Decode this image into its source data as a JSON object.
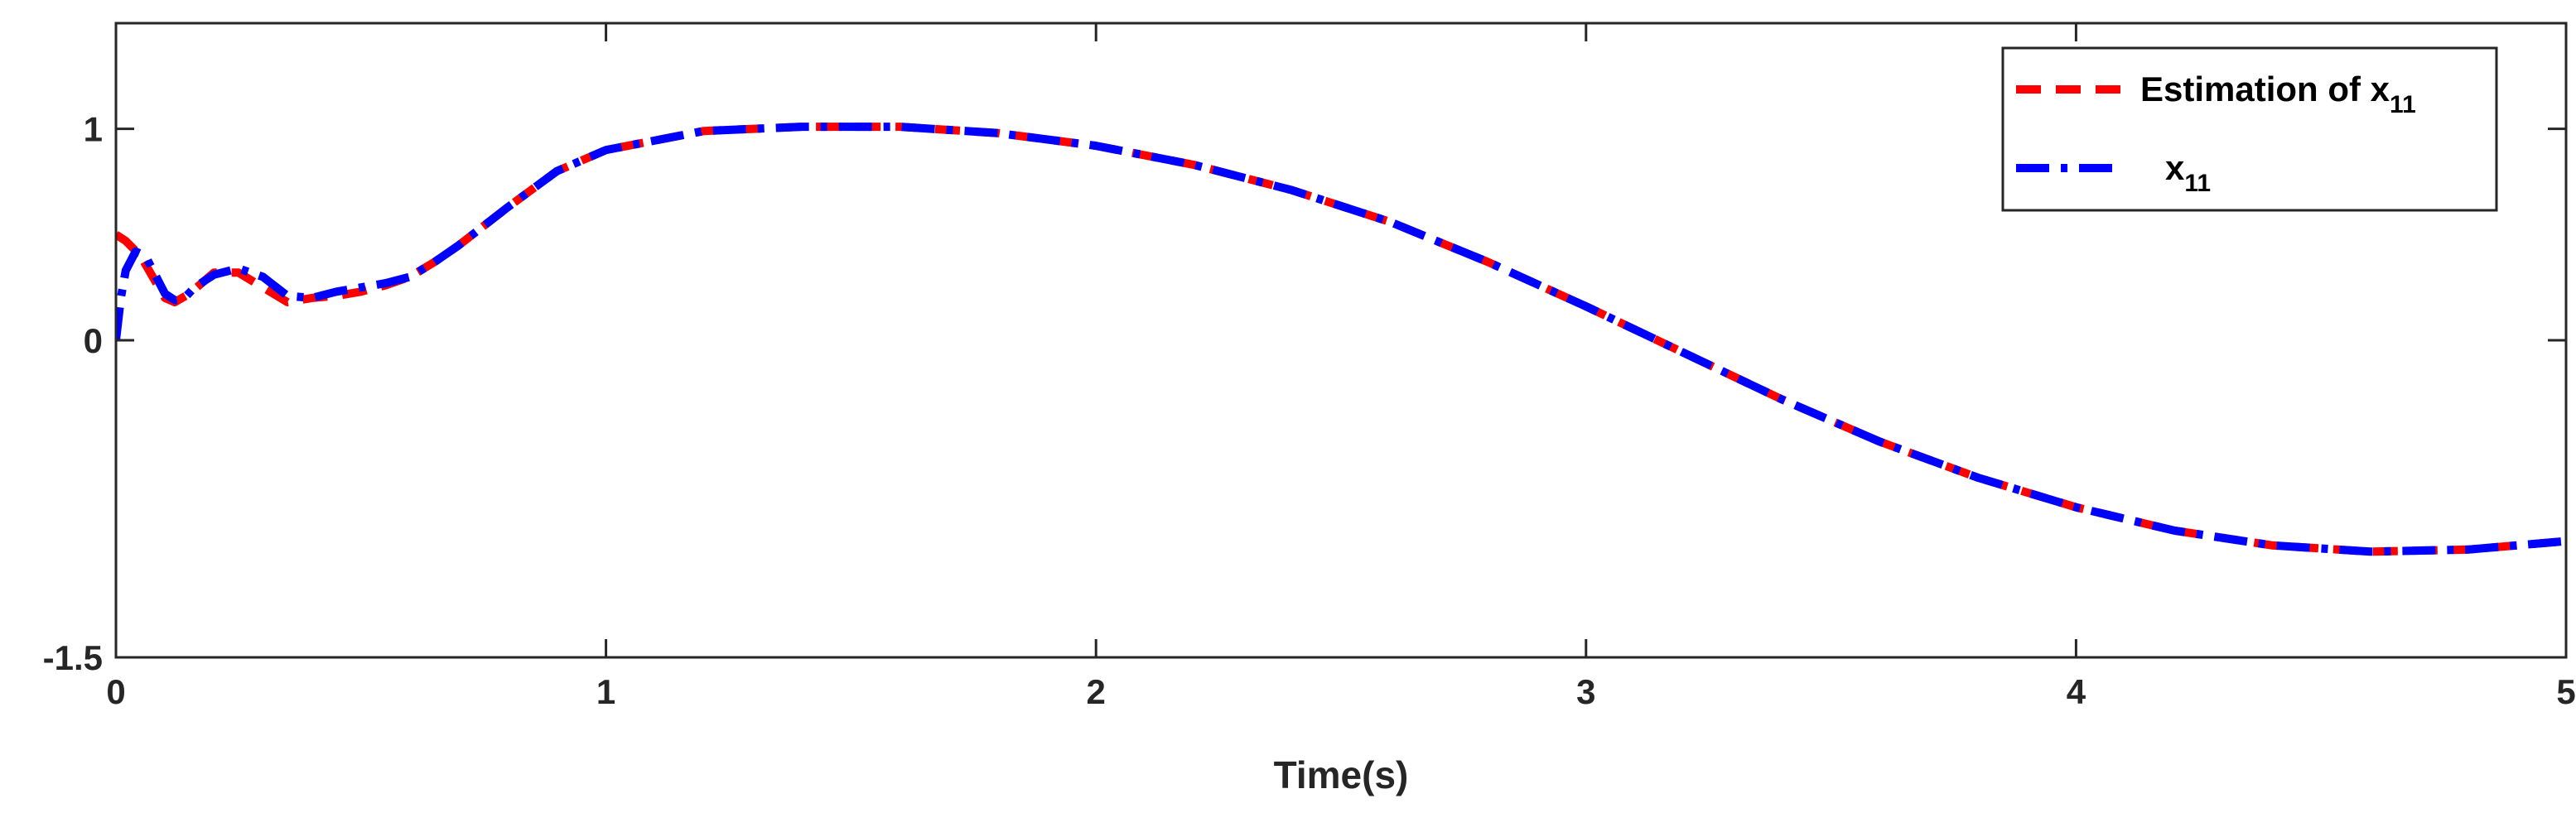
{
  "colors": {
    "estimation": "#ff0000",
    "actual": "#0000ff",
    "axis": "#262626",
    "background": "#ffffff"
  },
  "chart_data": {
    "type": "line",
    "title": "",
    "xlabel": "Time(s)",
    "ylabel": "",
    "xlim": [
      0,
      5
    ],
    "ylim": [
      -1.5,
      1.5
    ],
    "xticks": [
      0,
      1,
      2,
      3,
      4,
      5
    ],
    "xtick_labels": [
      "0",
      "1",
      "2",
      "3",
      "4",
      "5"
    ],
    "yticks": [
      -1.5,
      0,
      1
    ],
    "ytick_labels": [
      "-1.5",
      "0",
      "1"
    ],
    "grid": false,
    "legend_position": "top-right",
    "legend": [
      {
        "text": "Estimation of x",
        "sub": "11"
      },
      {
        "text": "x",
        "sub": "11"
      }
    ],
    "series": [
      {
        "style": "dashed",
        "color": "#ff0000",
        "x": [
          0,
          0.02,
          0.05,
          0.08,
          0.1,
          0.12,
          0.15,
          0.2,
          0.25,
          0.3,
          0.35,
          0.4,
          0.45,
          0.5,
          0.55,
          0.6,
          0.65,
          0.7,
          0.8,
          0.9,
          1.0,
          1.2,
          1.4,
          1.6,
          1.8,
          2.0,
          2.2,
          2.4,
          2.6,
          2.8,
          3.0,
          3.2,
          3.4,
          3.6,
          3.8,
          4.0,
          4.2,
          4.4,
          4.6,
          4.8,
          5.0
        ],
        "y": [
          0.5,
          0.47,
          0.4,
          0.28,
          0.2,
          0.18,
          0.22,
          0.32,
          0.32,
          0.25,
          0.18,
          0.2,
          0.21,
          0.23,
          0.26,
          0.3,
          0.37,
          0.45,
          0.63,
          0.8,
          0.9,
          0.99,
          1.01,
          1.01,
          0.98,
          0.92,
          0.83,
          0.71,
          0.56,
          0.37,
          0.16,
          -0.06,
          -0.28,
          -0.48,
          -0.65,
          -0.79,
          -0.9,
          -0.97,
          -1.0,
          -0.99,
          -0.95
        ]
      },
      {
        "style": "dash-dot",
        "color": "#0000ff",
        "x": [
          0,
          0.01,
          0.02,
          0.04,
          0.06,
          0.08,
          0.1,
          0.12,
          0.14,
          0.16,
          0.2,
          0.25,
          0.3,
          0.35,
          0.4,
          0.45,
          0.5,
          0.55,
          0.6,
          0.65,
          0.7,
          0.8,
          0.9,
          1.0,
          1.2,
          1.4,
          1.6,
          1.8,
          2.0,
          2.2,
          2.4,
          2.6,
          2.8,
          3.0,
          3.2,
          3.4,
          3.6,
          3.8,
          4.0,
          4.2,
          4.4,
          4.6,
          4.8,
          5.0
        ],
        "y": [
          0.0,
          0.2,
          0.33,
          0.42,
          0.4,
          0.31,
          0.22,
          0.19,
          0.2,
          0.25,
          0.31,
          0.34,
          0.3,
          0.21,
          0.2,
          0.23,
          0.25,
          0.27,
          0.3,
          0.37,
          0.45,
          0.63,
          0.8,
          0.9,
          0.99,
          1.01,
          1.01,
          0.98,
          0.92,
          0.83,
          0.71,
          0.56,
          0.37,
          0.16,
          -0.06,
          -0.28,
          -0.48,
          -0.65,
          -0.79,
          -0.9,
          -0.97,
          -1.0,
          -0.99,
          -0.95
        ]
      }
    ]
  }
}
